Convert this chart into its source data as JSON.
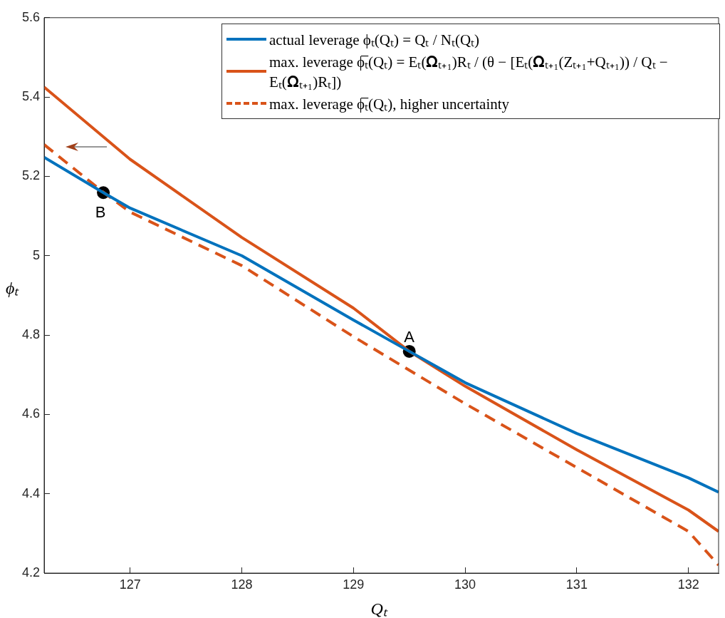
{
  "chart_data": {
    "type": "line",
    "xlabel": "Qₜ",
    "ylabel": "ϕₜ",
    "xlim": [
      126.23,
      132.27
    ],
    "xticks": [
      127,
      128,
      129,
      130,
      131,
      132
    ],
    "ylim": [
      4.2,
      5.6
    ],
    "yticks": [
      4.2,
      4.4,
      4.6,
      4.8,
      5,
      5.2,
      5.4,
      5.6
    ],
    "grid": false,
    "legend": "top right",
    "marker": "none",
    "series": [
      {
        "name": "actual leverage ϕₜ(Qₜ) = Qₜ / Nₜ(Qₜ)",
        "color": "#0072bd",
        "line_style": "solid",
        "x": [
          126.23,
          126.76,
          127,
          128,
          129,
          129.5,
          130,
          131,
          132,
          132.27
        ],
        "values": [
          5.248,
          5.159,
          5.12,
          5.0,
          4.838,
          4.759,
          4.68,
          4.552,
          4.44,
          4.404
        ]
      },
      {
        "name": "max. leverage ϕ̅ₜ(Qₜ) = Eₜ(𝛀ₜ₊₁)Rₜ / (θ − [Eₜ(𝛀ₜ₊₁(Zₜ₊₁+Qₜ₊₁)) / Qₜ − Eₜ(𝛀ₜ₊₁)Rₜ])",
        "color": "#d95319",
        "line_style": "solid",
        "x": [
          126.23,
          127,
          128,
          129,
          129.5,
          130,
          131,
          132,
          132.27
        ],
        "values": [
          5.425,
          5.243,
          5.046,
          4.868,
          4.759,
          4.671,
          4.511,
          4.359,
          4.305
        ]
      },
      {
        "name": "max. leverage ϕ̅ₜ(Qₜ), higher uncertainty",
        "color": "#d95319",
        "line_style": "dashed",
        "x": [
          126.23,
          126.76,
          127,
          128,
          129,
          130,
          131,
          132,
          132.27
        ],
        "values": [
          5.28,
          5.16,
          5.11,
          4.975,
          4.796,
          4.627,
          4.466,
          4.305,
          4.22
        ]
      },
      {
        "type": "scatter",
        "color": "#000000",
        "marker": "circle",
        "x": [
          126.76,
          129.5
        ],
        "values": [
          5.159,
          4.759
        ]
      }
    ],
    "annotations": [
      {
        "text": "A",
        "x": 129.5,
        "y": 4.759
      },
      {
        "text": "B",
        "x": 126.76,
        "y": 5.159
      }
    ]
  }
}
